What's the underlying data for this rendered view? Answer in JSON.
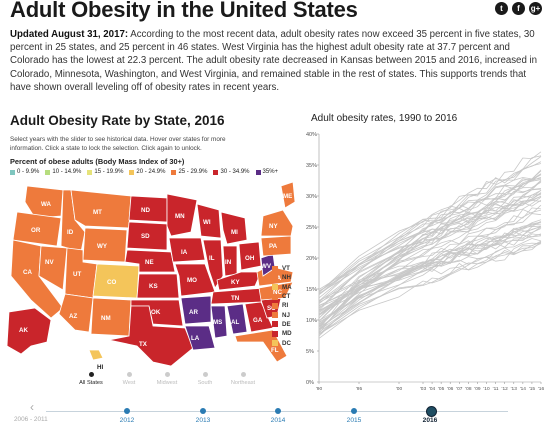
{
  "page": {
    "title": "Adult Obesity in the United States",
    "social": [
      "t",
      "f",
      "g+"
    ],
    "intro_date": "Updated August 31, 2017:",
    "intro_text": "According to the most recent data, adult obesity rates now exceed 35 percent in five states, 30 percent in 25 states, and 25 percent in 46 states. West Virginia has the highest adult obesity rate at 37.7 percent and Colorado has the lowest at 22.3 percent. The adult obesity rate decreased in Kansas between 2015 and 2016, increased in Colorado, Minnesota, Washington, and West Virginia, and remained stable in the rest of states. This supports trends that have shown overall leveling off of obesity rates in recent years."
  },
  "map": {
    "title": "Adult Obesity Rate by State, 2016",
    "help": "Select years with the slider to see historical data. Hover over states for more information. Click a state to lock the selection. Click again to unlock.",
    "legend_title": "Percent of obese adults (Body Mass Index of 30+)",
    "legend": [
      "0 - 9.9%",
      "10 - 14.9%",
      "15 - 19.9%",
      "20 - 24.9%",
      "25 - 29.9%",
      "30 - 34.9%",
      "35%+"
    ],
    "colors": {
      "c20": "#f4c55a",
      "c25": "#ee7a3c",
      "c30": "#c9252b",
      "c35": "#5b2d86"
    },
    "state_labels": [
      "WA",
      "OR",
      "CA",
      "NV",
      "ID",
      "MT",
      "WY",
      "UT",
      "CO",
      "AZ",
      "NM",
      "ND",
      "SD",
      "NE",
      "KS",
      "OK",
      "TX",
      "MN",
      "IA",
      "MO",
      "AR",
      "LA",
      "WI",
      "IL",
      "MI",
      "IN",
      "OH",
      "KY",
      "TN",
      "MS",
      "AL",
      "GA",
      "FL",
      "SC",
      "NC",
      "VA",
      "WV",
      "PA",
      "NY",
      "ME",
      "AK",
      "HI"
    ],
    "small_states": [
      {
        "code": "VT",
        "tier": "c25"
      },
      {
        "code": "NH",
        "tier": "c25"
      },
      {
        "code": "MA",
        "tier": "c20"
      },
      {
        "code": "CT",
        "tier": "c25"
      },
      {
        "code": "RI",
        "tier": "c25"
      },
      {
        "code": "NJ",
        "tier": "c25"
      },
      {
        "code": "DE",
        "tier": "c30"
      },
      {
        "code": "MD",
        "tier": "c30"
      },
      {
        "code": "DC",
        "tier": "c20"
      }
    ],
    "regions": [
      "All States",
      "West",
      "Midwest",
      "South",
      "Northeast"
    ],
    "active_region": "All States"
  },
  "timeline": {
    "first_label": "2006 - 2011",
    "years": [
      "2012",
      "2013",
      "2014",
      "2015",
      "2016"
    ],
    "active_year": "2016"
  },
  "chart_data": {
    "type": "line",
    "title": "Adult obesity rates, 1990 to 2016",
    "x_tick_labels": [
      "'90",
      "'95",
      "'00",
      "'03",
      "'04",
      "'05",
      "'06",
      "'07",
      "'08",
      "'09",
      "'10",
      "'11",
      "'12",
      "'13",
      "'14",
      "'15",
      "'16"
    ],
    "x_ticks": [
      1990,
      1995,
      2000,
      2003,
      2004,
      2005,
      2006,
      2007,
      2008,
      2009,
      2010,
      2011,
      2012,
      2013,
      2014,
      2015,
      2016
    ],
    "y_ticks": [
      0,
      5,
      10,
      15,
      20,
      25,
      30,
      35,
      40
    ],
    "y_tick_labels": [
      "0%",
      "5%",
      "10%",
      "15%",
      "20%",
      "25%",
      "30%",
      "35%",
      "40%"
    ],
    "xlim": [
      1990,
      2016
    ],
    "ylim": [
      0,
      40
    ],
    "line_color": "#c8c8c8",
    "series_count": 51,
    "series_start_range_1990": [
      7,
      15
    ],
    "series_end_range_2016": [
      22.3,
      37.7
    ]
  }
}
